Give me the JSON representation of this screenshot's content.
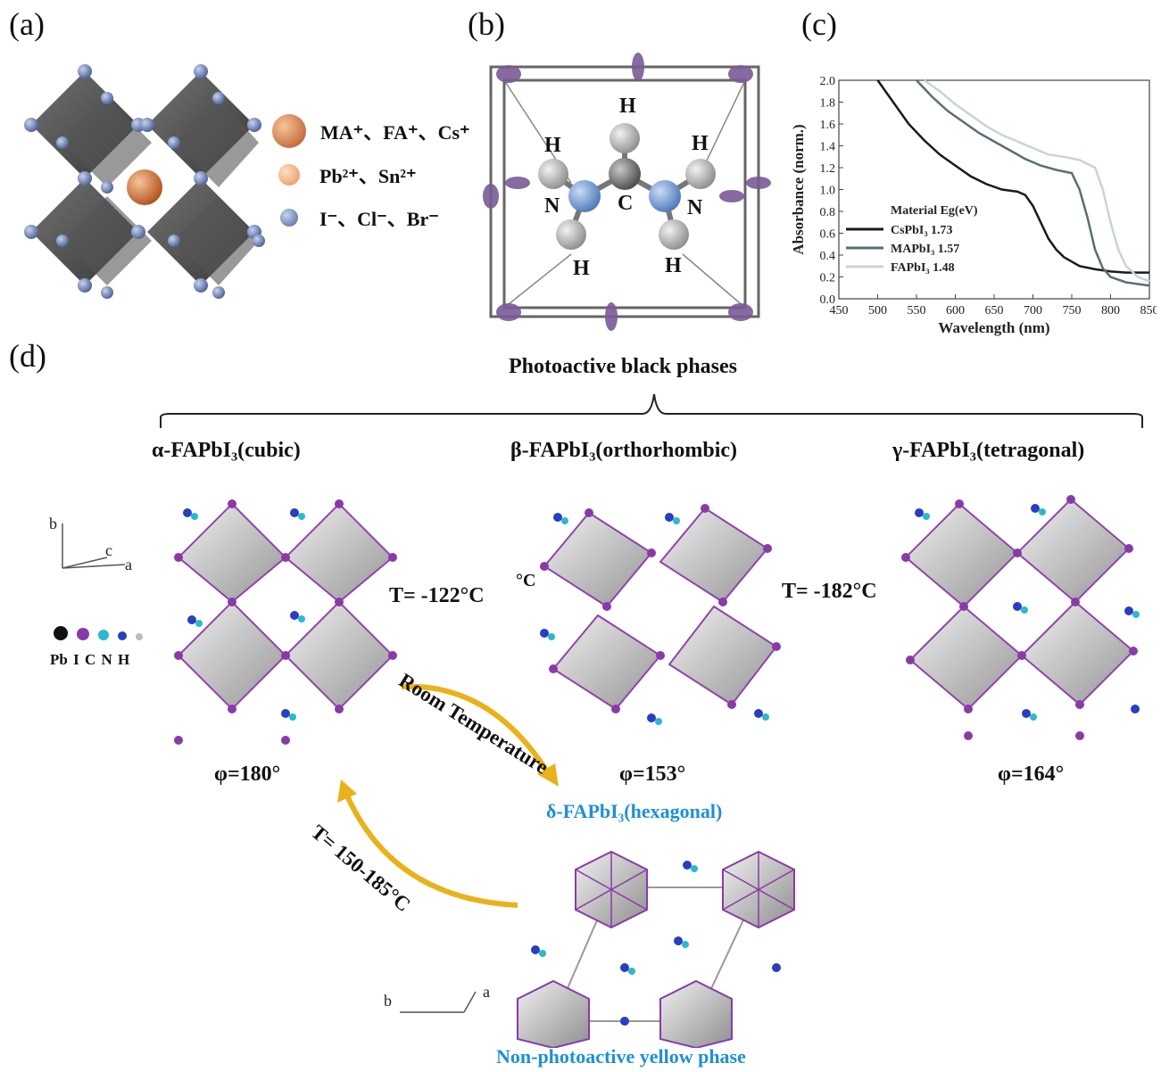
{
  "panels": {
    "a": {
      "label": "(a)",
      "legend": [
        {
          "text": "MA⁺、FA⁺、Cs⁺",
          "color": "#c4622b"
        },
        {
          "text": "Pb²⁺、Sn²⁺",
          "color": "#f0a070"
        },
        {
          "text": "I⁻、Cl⁻、Br⁻",
          "color": "#6d82b0"
        }
      ]
    },
    "b": {
      "label": "(b)",
      "atoms": {
        "H": "H",
        "N": "N",
        "C": "C"
      }
    },
    "c": {
      "label": "(c)"
    },
    "d": {
      "label": "(d)",
      "group_title": "Photoactive black phases",
      "phases": [
        {
          "name": "α-FAPbI₃(cubic)",
          "angle": "φ=180°"
        },
        {
          "name": "β-FAPbI₃(orthorhombic)",
          "angle": "φ=153°"
        },
        {
          "name": "γ-FAPbI₃(tetragonal)",
          "angle": "φ=164°"
        }
      ],
      "transitions": {
        "t1": "T= -122°C",
        "t1_fragment": "°C",
        "t2": "T= -182°C",
        "room": "Room Temperature",
        "heat": "T= 150-185°C"
      },
      "hex_phase": "δ-FAPbI₃(hexagonal)",
      "yellow_phase": "Non-photoactive yellow phase",
      "axes": {
        "b": "b",
        "c": "c",
        "a": "a"
      },
      "atom_legend": "Pb I C N H"
    }
  },
  "chart_data": {
    "type": "line",
    "xlabel": "Wavelength (nm)",
    "ylabel": "Absorbance (norm.)",
    "xlim": [
      450,
      850
    ],
    "ylim": [
      0,
      2.0
    ],
    "xticks": [
      450,
      500,
      550,
      600,
      650,
      700,
      750,
      800,
      850
    ],
    "yticks": [
      0.0,
      0.2,
      0.4,
      0.6,
      0.8,
      1.0,
      1.2,
      1.4,
      1.6,
      1.8,
      2.0
    ],
    "legend_header": "Material  Eg(eV)",
    "legend_placement": "bottom-left",
    "series": [
      {
        "name": "CsPbI₃",
        "eg": "1.73",
        "color": "#1a1a1a",
        "x": [
          500,
          520,
          540,
          560,
          580,
          600,
          620,
          640,
          660,
          680,
          690,
          700,
          710,
          720,
          730,
          740,
          760,
          780,
          800,
          820,
          850
        ],
        "y": [
          2.0,
          1.8,
          1.6,
          1.45,
          1.32,
          1.22,
          1.12,
          1.05,
          1.0,
          0.98,
          0.95,
          0.85,
          0.7,
          0.55,
          0.45,
          0.38,
          0.3,
          0.27,
          0.25,
          0.24,
          0.24
        ]
      },
      {
        "name": "MAPbI₃",
        "eg": "1.57",
        "color": "#5a6e76",
        "x": [
          550,
          570,
          590,
          610,
          630,
          650,
          670,
          690,
          710,
          730,
          750,
          760,
          770,
          780,
          790,
          800,
          820,
          850
        ],
        "y": [
          2.0,
          1.85,
          1.72,
          1.62,
          1.52,
          1.44,
          1.36,
          1.28,
          1.22,
          1.18,
          1.15,
          1.0,
          0.75,
          0.45,
          0.28,
          0.2,
          0.15,
          0.12
        ]
      },
      {
        "name": "FAPbI₃",
        "eg": "1.48",
        "color": "#c8d3d8",
        "x": [
          560,
          580,
          600,
          620,
          640,
          660,
          680,
          700,
          720,
          740,
          760,
          780,
          790,
          800,
          810,
          820,
          835,
          850
        ],
        "y": [
          2.0,
          1.9,
          1.78,
          1.68,
          1.58,
          1.5,
          1.44,
          1.38,
          1.32,
          1.3,
          1.27,
          1.2,
          1.0,
          0.7,
          0.45,
          0.3,
          0.2,
          0.16
        ]
      }
    ]
  }
}
